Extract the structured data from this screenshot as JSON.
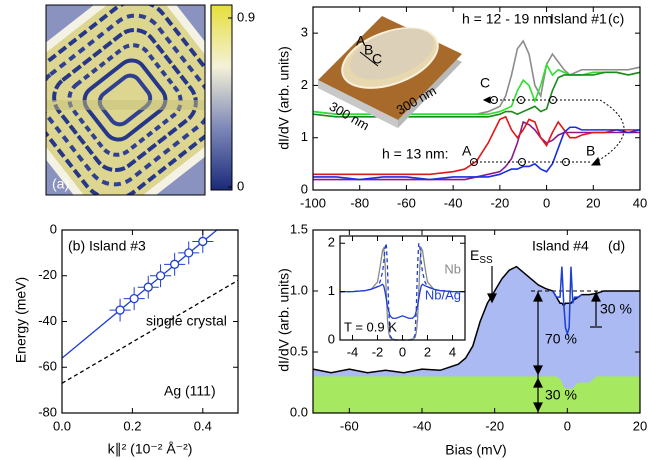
{
  "chart_data": [
    {
      "type": "image",
      "label": "(a)",
      "colorbar": {
        "lim": [
          0,
          0.9
        ],
        "ticks": [
          0,
          0.9
        ],
        "colors": [
          "#1a2a7a",
          "#7d88b8",
          "#f4f1d8",
          "#e6df3c"
        ]
      }
    },
    {
      "type": "line",
      "label": "(c)",
      "title": "Island #1",
      "ylabel": "dI/dV (arb. units)",
      "annotations": {
        "height_top": "h = 12 - 19 nm",
        "height_bottom": "h = 13 nm:",
        "point_a": "A",
        "point_b": "B",
        "point_c": "C",
        "inset_a": "A",
        "inset_b": "B",
        "inset_c": "C",
        "inset_scale_x": "300 nm",
        "inset_scale_y": "300 nm"
      },
      "x": [
        -100,
        -90,
        -80,
        -70,
        -60,
        -50,
        -40,
        -35,
        -30,
        -25,
        -20,
        -17.5,
        -15,
        -12.5,
        -10,
        -7.5,
        -5,
        -2.5,
        0,
        2.5,
        5,
        7.5,
        10,
        12.5,
        15,
        20,
        25,
        30,
        35,
        40
      ],
      "series": [
        {
          "color": "#8c8c8c",
          "values": [
            1.5,
            1.45,
            1.45,
            1.45,
            1.45,
            1.45,
            1.45,
            1.45,
            1.45,
            1.5,
            1.6,
            1.8,
            2.2,
            2.7,
            2.85,
            2.6,
            2.0,
            1.8,
            2.4,
            2.6,
            2.45,
            2.3,
            2.2,
            2.25,
            2.3,
            2.3,
            2.3,
            2.3,
            2.3,
            2.35
          ]
        },
        {
          "color": "#2ee02e",
          "values": [
            1.5,
            1.45,
            1.45,
            1.45,
            1.45,
            1.45,
            1.45,
            1.45,
            1.45,
            1.45,
            1.5,
            1.55,
            1.6,
            1.9,
            2.1,
            2.0,
            1.7,
            2.0,
            2.4,
            2.2,
            2.3,
            2.25,
            2.2,
            2.2,
            2.2,
            2.25,
            2.25,
            2.25,
            2.2,
            2.25
          ]
        },
        {
          "color": "#1a8a1a",
          "values": [
            1.45,
            1.4,
            1.4,
            1.4,
            1.4,
            1.4,
            1.4,
            1.4,
            1.4,
            1.4,
            1.45,
            1.5,
            1.5,
            1.45,
            1.5,
            1.55,
            1.6,
            1.5,
            1.55,
            1.9,
            2.15,
            2.2,
            2.2,
            2.2,
            2.2,
            2.2,
            2.25,
            2.25,
            2.2,
            2.25
          ]
        },
        {
          "color": "#8a1a8a",
          "values": [
            0.2,
            0.2,
            0.2,
            0.2,
            0.2,
            0.2,
            0.2,
            0.2,
            0.25,
            0.3,
            0.35,
            0.45,
            0.6,
            0.9,
            1.3,
            1.25,
            1.15,
            1.0,
            0.9,
            0.95,
            1.05,
            1.1,
            1.1,
            1.1,
            1.1,
            1.1,
            1.1,
            1.1,
            1.1,
            1.1
          ]
        },
        {
          "color": "#e01818",
          "values": [
            0.3,
            0.3,
            0.3,
            0.3,
            0.3,
            0.3,
            0.35,
            0.4,
            0.55,
            0.9,
            1.35,
            1.4,
            1.15,
            1.0,
            1.15,
            1.35,
            1.3,
            1.0,
            0.85,
            1.1,
            1.3,
            1.15,
            1.0,
            1.0,
            1.05,
            1.1,
            1.1,
            1.15,
            1.15,
            1.15
          ]
        },
        {
          "color": "#1a2ee0",
          "values": [
            0.25,
            0.25,
            0.2,
            0.25,
            0.25,
            0.2,
            0.25,
            0.25,
            0.25,
            0.25,
            0.3,
            0.35,
            0.4,
            0.4,
            0.45,
            0.45,
            0.5,
            0.4,
            0.35,
            0.5,
            0.8,
            1.1,
            1.2,
            1.2,
            1.15,
            1.15,
            1.15,
            1.15,
            1.1,
            1.15
          ]
        }
      ],
      "xlim": [
        -100,
        40
      ],
      "xticks": [
        -100,
        -80,
        -60,
        -40,
        -20,
        0,
        20,
        40
      ],
      "ylim": [
        0,
        3.5
      ],
      "yticks": [
        0,
        1,
        2,
        3
      ]
    },
    {
      "type": "scatter",
      "label": "(b) Island #3",
      "xlabel": "k∥² (10⁻² Å⁻²)",
      "ylabel": "Energy (meV)",
      "annotations": {
        "reference": "single crystal",
        "surface": "Ag (111)"
      },
      "color": "#1f3fd0",
      "x": [
        0.165,
        0.205,
        0.245,
        0.28,
        0.32,
        0.36,
        0.4
      ],
      "values": [
        -35,
        -30,
        -25,
        -20,
        -15,
        -10,
        -5
      ],
      "xerr": [
        0.03,
        0.03,
        0.03,
        0.03,
        0.03,
        0.03,
        0.03
      ],
      "yerr": [
        5,
        5,
        5,
        5,
        5,
        5,
        5
      ],
      "lines": [
        {
          "color": "#1f3fd0",
          "dash": false,
          "x": [
            0,
            0.44,
            0.5
          ],
          "values": [
            -56,
            0,
            0
          ]
        },
        {
          "color": "#000000",
          "dash": true,
          "x": [
            0,
            0.5
          ],
          "values": [
            -67,
            -22
          ]
        }
      ],
      "xlim": [
        0,
        0.5
      ],
      "xticks": [
        {
          "value": 0,
          "label": "0.0"
        },
        0.2,
        0.4
      ],
      "ylim": [
        -80,
        0
      ],
      "yticks": [
        0,
        -20,
        -40,
        -60,
        -80
      ]
    },
    {
      "type": "area",
      "label": "(d)",
      "title": "Island #4",
      "xlabel": "Bias (mV)",
      "ylabel": "dI/dV (arb. units)",
      "annotations": {
        "edge": "E",
        "edge_sub": "SS",
        "total": "70 %",
        "base": "30 %",
        "gap": "30 %"
      },
      "x": [
        -70,
        -65,
        -60,
        -55,
        -50,
        -45,
        -40,
        -35,
        -30,
        -28,
        -26,
        -24,
        -22,
        -20,
        -18,
        -16,
        -14,
        -12,
        -10,
        -8,
        -6,
        -4,
        -3,
        -2,
        -1.5,
        -1,
        -0.5,
        0,
        0.5,
        1,
        1.5,
        2,
        3,
        4,
        6,
        8,
        10,
        15,
        20
      ],
      "series": [
        {
          "color": "#000000",
          "fill": "#abbaf2",
          "values": [
            0.36,
            0.33,
            0.36,
            0.33,
            0.35,
            0.33,
            0.36,
            0.35,
            0.4,
            0.45,
            0.55,
            0.75,
            0.9,
            1.0,
            1.1,
            1.17,
            1.2,
            1.15,
            1.1,
            1.05,
            1.02,
            1.0,
            0.95,
            0.9,
            0.9,
            0.88,
            0.9,
            0.9,
            0.9,
            0.9,
            0.92,
            0.93,
            0.95,
            0.97,
            0.97,
            0.98,
            1.0,
            1.0,
            1.0
          ]
        },
        {
          "color": "#a6e860",
          "fill": "#a6e860",
          "values": [
            0.3,
            0.3,
            0.3,
            0.3,
            0.3,
            0.3,
            0.3,
            0.3,
            0.3,
            0.3,
            0.3,
            0.3,
            0.3,
            0.3,
            0.3,
            0.3,
            0.3,
            0.3,
            0.3,
            0.3,
            0.3,
            0.3,
            0.3,
            0.28,
            0.25,
            0.22,
            0.2,
            0.2,
            0.2,
            0.2,
            0.2,
            0.22,
            0.25,
            0.25,
            0.25,
            0.3,
            0.3,
            0.3,
            0.3
          ]
        }
      ],
      "peak": {
        "color": "#1f3fd0",
        "x": [
          -4,
          -3,
          -2,
          -1.5,
          -1,
          -0.5,
          0,
          0.5,
          1,
          1.5,
          2,
          3,
          4
        ],
        "values": [
          1.0,
          0.95,
          0.95,
          1.2,
          0.9,
          0.7,
          0.65,
          0.7,
          1.2,
          0.9,
          0.95,
          0.95,
          0.97
        ]
      },
      "reference": {
        "x": [
          -10,
          20
        ],
        "values": [
          1,
          1
        ]
      },
      "xlim": [
        -70,
        20
      ],
      "xticks": [
        -60,
        -40,
        -20,
        0,
        20
      ],
      "ylim": [
        0,
        1.5
      ],
      "yticks": [
        {
          "value": 0,
          "label": "0.0"
        },
        0.5,
        {
          "value": 1,
          "label": "1.0"
        },
        1.5
      ],
      "inset": {
        "type": "line",
        "label": "T = 0.9 K",
        "x": [
          -5,
          -4,
          -3,
          -2.5,
          -2,
          -1.8,
          -1.6,
          -1.5,
          -1.4,
          -1.3,
          -1.2,
          -1.1,
          -1,
          -0.8,
          -0.5,
          0,
          0.5,
          0.8,
          1,
          1.1,
          1.2,
          1.3,
          1.4,
          1.5,
          1.6,
          1.8,
          2,
          2.5,
          3,
          4,
          5
        ],
        "series": [
          {
            "name": "Nb",
            "color": "#8a8a8a",
            "dash": false,
            "values": [
              1.0,
              1.0,
              1.02,
              1.05,
              1.2,
              1.5,
              1.85,
              1.9,
              1.6,
              1.0,
              0.4,
              0.15,
              0.05,
              0.02,
              0,
              0,
              0,
              0.02,
              0.05,
              0.15,
              0.4,
              1.0,
              1.6,
              1.9,
              1.85,
              1.5,
              1.2,
              1.05,
              1.02,
              1.0,
              1.0
            ]
          },
          {
            "color": "#1f3fd0",
            "dash": true,
            "values": [
              1.0,
              1.0,
              1.02,
              1.05,
              1.1,
              1.2,
              1.4,
              1.6,
              1.9,
              2.0,
              1.5,
              0.6,
              0.1,
              0,
              0,
              0,
              0,
              0,
              0.1,
              0.6,
              1.5,
              2.0,
              1.9,
              1.6,
              1.4,
              1.2,
              1.1,
              1.05,
              1.02,
              1.0,
              1.0
            ]
          },
          {
            "name": "Nb/Ag",
            "color": "#1f3fd0",
            "dash": false,
            "values": [
              1.0,
              1.0,
              1.02,
              1.05,
              1.1,
              1.12,
              1.15,
              1.12,
              1.0,
              0.85,
              0.7,
              0.6,
              0.5,
              0.45,
              0.45,
              0.5,
              0.45,
              0.45,
              0.5,
              0.6,
              0.7,
              0.85,
              1.0,
              1.12,
              1.15,
              1.12,
              1.1,
              1.05,
              1.02,
              1.0,
              1.0
            ]
          }
        ],
        "xlim": [
          -5,
          5
        ],
        "xticks": [
          -4,
          -2,
          0,
          2,
          4
        ],
        "ylim": [
          0,
          2.15
        ],
        "yticks": [
          0,
          1,
          2
        ]
      }
    }
  ]
}
